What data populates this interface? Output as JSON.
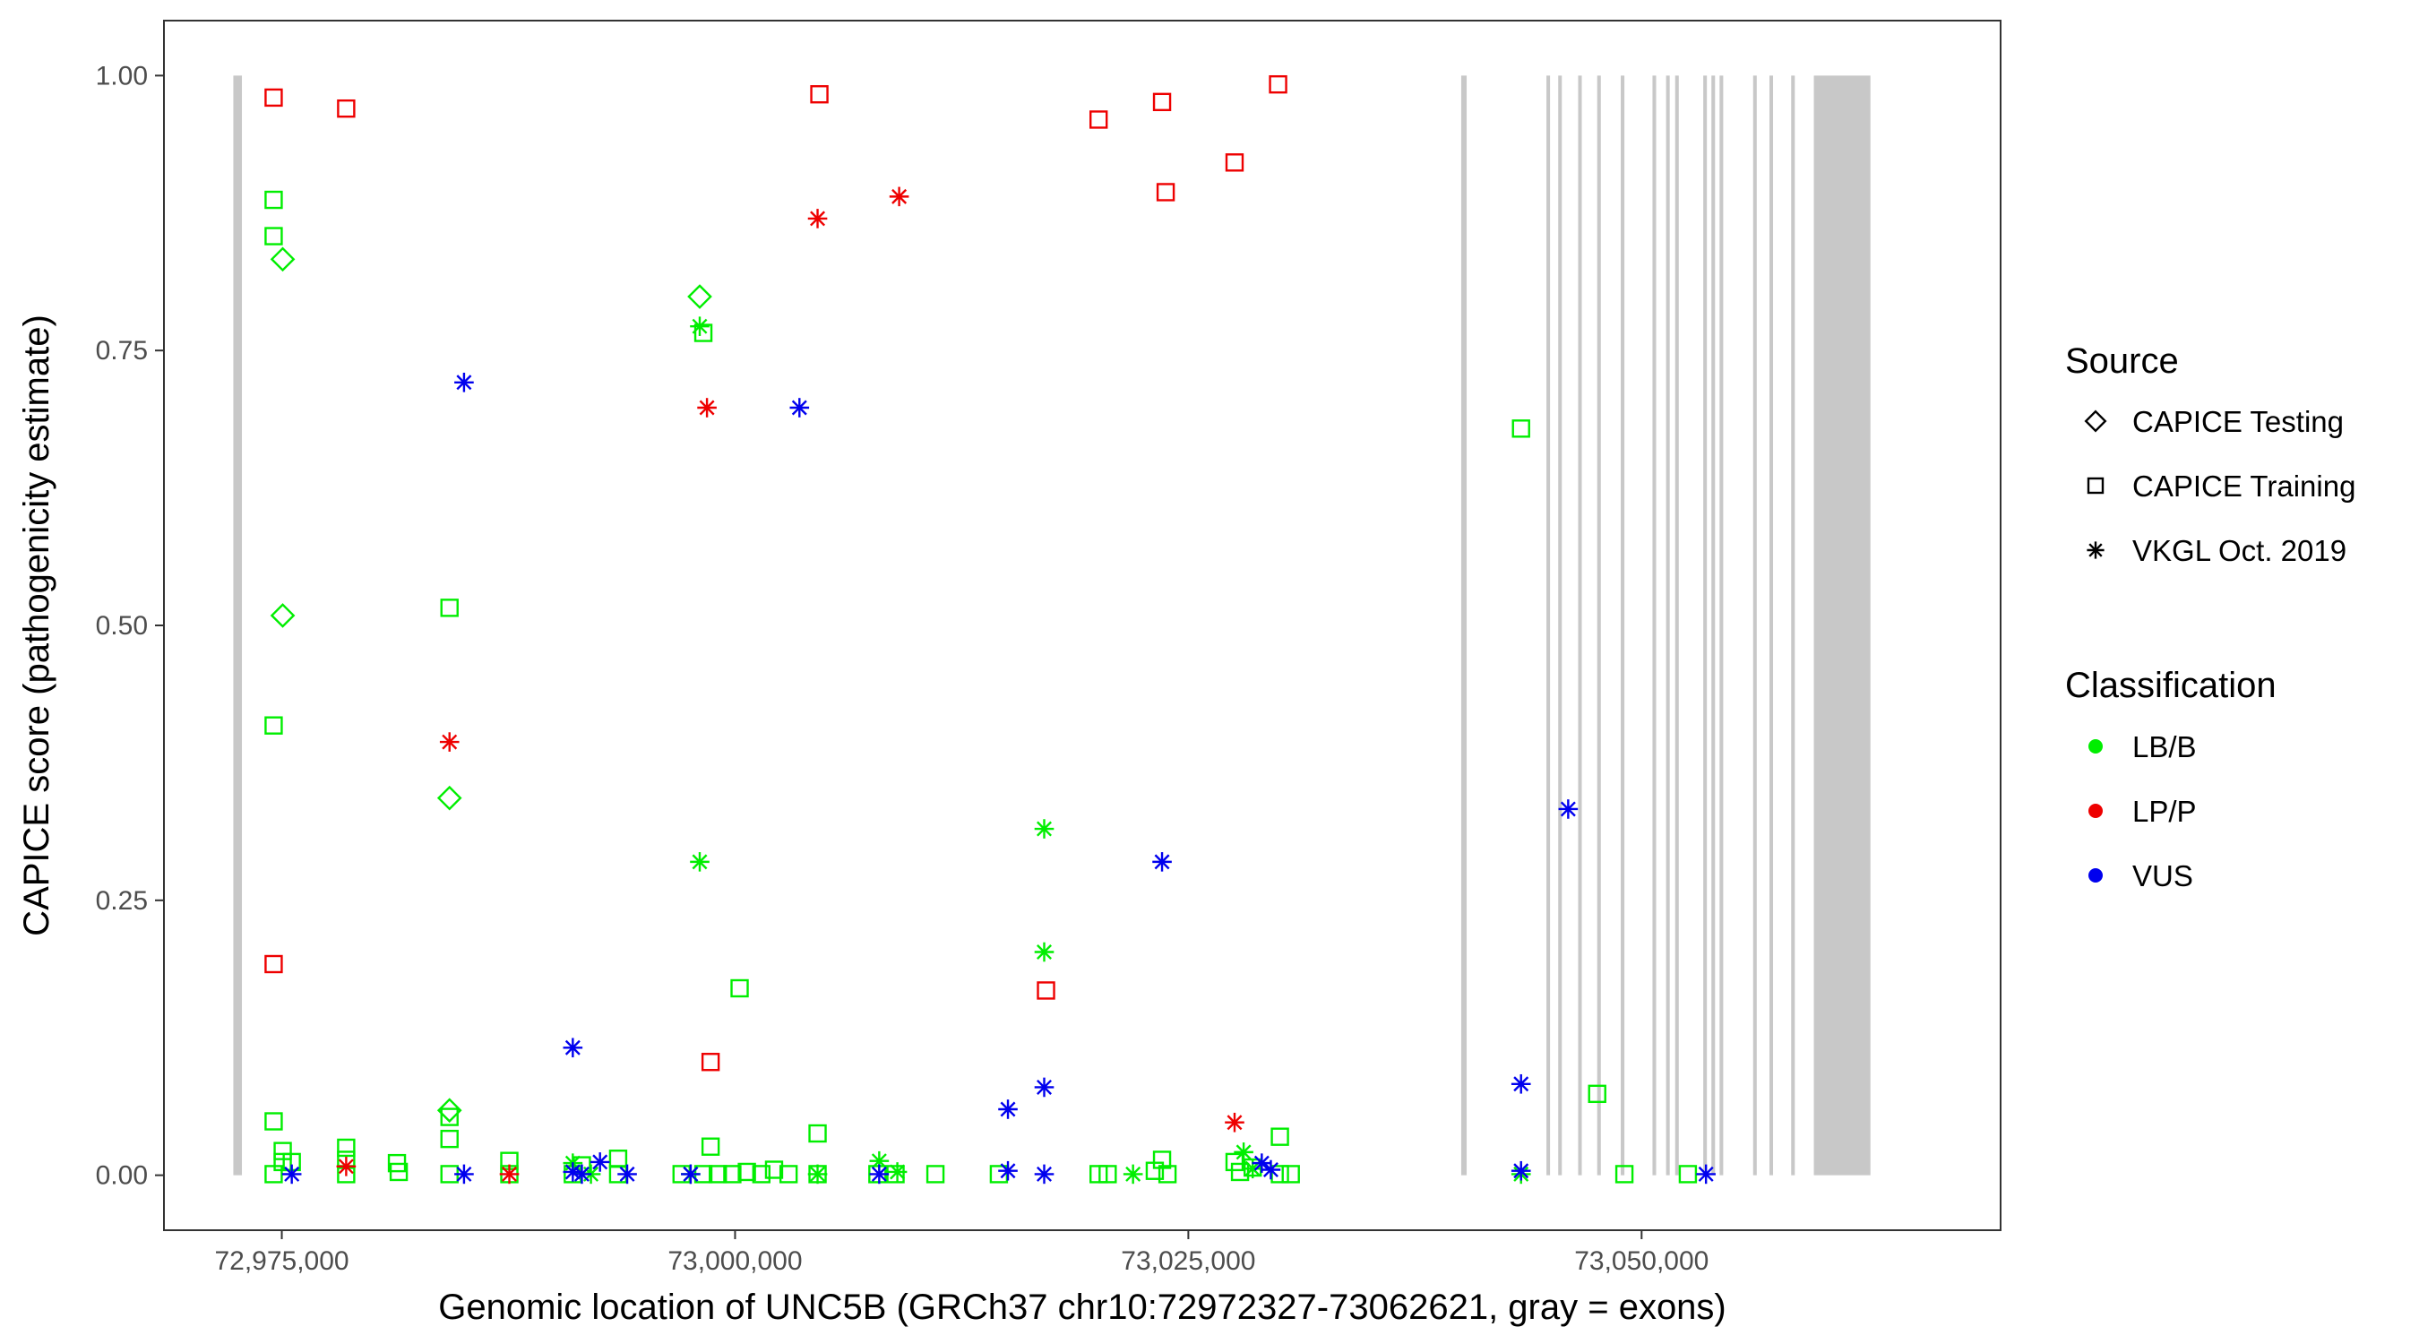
{
  "chart_data": {
    "type": "scatter",
    "xlabel": "Genomic location of UNC5B (GRCh37 chr10:72972327-73062621, gray = exons)",
    "ylabel": "CAPICE score (pathogenicity estimate)",
    "xlim": [
      72968500,
      73069800
    ],
    "ylim": [
      -0.05,
      1.05
    ],
    "x_ticks": [
      {
        "value": 72975000,
        "label": "72,975,000"
      },
      {
        "value": 73000000,
        "label": "73,000,000"
      },
      {
        "value": 73025000,
        "label": "73,025,000"
      },
      {
        "value": 73050000,
        "label": "73,050,000"
      }
    ],
    "y_ticks": [
      {
        "value": 0.0,
        "label": "0.00"
      },
      {
        "value": 0.25,
        "label": "0.25"
      },
      {
        "value": 0.5,
        "label": "0.50"
      },
      {
        "value": 0.75,
        "label": "0.75"
      },
      {
        "value": 1.0,
        "label": "1.00"
      }
    ],
    "grid": false,
    "exon_color": "#c8c8c8",
    "exons": [
      [
        72972327,
        72972800
      ],
      [
        73040050,
        73040350
      ],
      [
        73044750,
        73044950
      ],
      [
        73045400,
        73045600
      ],
      [
        73046500,
        73046700
      ],
      [
        73047550,
        73047750
      ],
      [
        73048850,
        73049050
      ],
      [
        73050600,
        73050800
      ],
      [
        73051350,
        73051550
      ],
      [
        73051850,
        73052050
      ],
      [
        73053400,
        73053600
      ],
      [
        73053850,
        73054050
      ],
      [
        73054300,
        73054500
      ],
      [
        73056150,
        73056350
      ],
      [
        73057050,
        73057250
      ],
      [
        73058250,
        73058450
      ],
      [
        73059500,
        73062621
      ]
    ],
    "legend": {
      "placement": "right",
      "source_title": "Source",
      "sources": [
        {
          "key": "testing",
          "label": "CAPICE Testing",
          "shape": "diamond"
        },
        {
          "key": "training",
          "label": "CAPICE Training",
          "shape": "square"
        },
        {
          "key": "vkgl",
          "label": "VKGL Oct. 2019",
          "shape": "asterisk"
        }
      ],
      "class_title": "Classification",
      "classes": [
        {
          "key": "LB/B",
          "label": "LB/B",
          "color": "#00ee00"
        },
        {
          "key": "LP/P",
          "label": "LP/P",
          "color": "#ee0000"
        },
        {
          "key": "VUS",
          "label": "VUS",
          "color": "#0000ee"
        }
      ]
    },
    "series": [
      {
        "source": "training",
        "classification": "LP/P",
        "points": [
          [
            72974550,
            0.98
          ],
          [
            72978550,
            0.97
          ],
          [
            73004650,
            0.983
          ],
          [
            73020050,
            0.96
          ],
          [
            73023550,
            0.976
          ],
          [
            73027550,
            0.921
          ],
          [
            73029950,
            0.992
          ],
          [
            73023750,
            0.894
          ],
          [
            72974550,
            0.192
          ],
          [
            72998650,
            0.103
          ],
          [
            73017150,
            0.168
          ]
        ]
      },
      {
        "source": "training",
        "classification": "LB/B",
        "points": [
          [
            72974550,
            0.887
          ],
          [
            72974550,
            0.854
          ],
          [
            72998250,
            0.766
          ],
          [
            72984250,
            0.516
          ],
          [
            72974550,
            0.409
          ],
          [
            73000250,
            0.17
          ],
          [
            72974550,
            0.049
          ],
          [
            72975050,
            0.022
          ],
          [
            72975050,
            0.012
          ],
          [
            72975550,
            0.012
          ],
          [
            72974550,
            0.001
          ],
          [
            72978550,
            0.025
          ],
          [
            72978550,
            0.014
          ],
          [
            72978550,
            0.001
          ],
          [
            72981350,
            0.011
          ],
          [
            72981450,
            0.003
          ],
          [
            72984250,
            0.053
          ],
          [
            72984250,
            0.033
          ],
          [
            72984250,
            0.001
          ],
          [
            72987550,
            0.013
          ],
          [
            72987550,
            0.001
          ],
          [
            72991050,
            0.001
          ],
          [
            72991550,
            0.009
          ],
          [
            72993550,
            0.015
          ],
          [
            72993550,
            0.001
          ],
          [
            72997050,
            0.001
          ],
          [
            72998650,
            0.026
          ],
          [
            72998250,
            0.001
          ],
          [
            72999050,
            0.001
          ],
          [
            72999850,
            0.001
          ],
          [
            73000650,
            0.003
          ],
          [
            73001450,
            0.001
          ],
          [
            73002150,
            0.005
          ],
          [
            73002950,
            0.001
          ],
          [
            73004550,
            0.038
          ],
          [
            73004550,
            0.001
          ],
          [
            73007850,
            0.001
          ],
          [
            73008850,
            0.001
          ],
          [
            73011050,
            0.001
          ],
          [
            73014550,
            0.001
          ],
          [
            73020050,
            0.001
          ],
          [
            73020550,
            0.001
          ],
          [
            73023150,
            0.004
          ],
          [
            73023550,
            0.014
          ],
          [
            73023850,
            0.001
          ],
          [
            73027550,
            0.012
          ],
          [
            73027850,
            0.003
          ],
          [
            73028550,
            0.007
          ],
          [
            73030050,
            0.035
          ],
          [
            73030050,
            0.001
          ],
          [
            73030650,
            0.001
          ],
          [
            73043350,
            0.679
          ],
          [
            73047550,
            0.074
          ],
          [
            73049050,
            0.001
          ],
          [
            73052550,
            0.001
          ]
        ]
      },
      {
        "source": "testing",
        "classification": "LB/B",
        "points": [
          [
            72975050,
            0.833
          ],
          [
            72998050,
            0.799
          ],
          [
            72975050,
            0.509
          ],
          [
            72984250,
            0.343
          ],
          [
            72984250,
            0.059
          ]
        ]
      },
      {
        "source": "vkgl",
        "classification": "LB/B",
        "points": [
          [
            72998050,
            0.772
          ],
          [
            72998050,
            0.285
          ],
          [
            73017050,
            0.315
          ],
          [
            73017050,
            0.203
          ],
          [
            72991050,
            0.011
          ],
          [
            72992050,
            0.001
          ],
          [
            72997550,
            0.001
          ],
          [
            73004550,
            0.001
          ],
          [
            73007950,
            0.013
          ],
          [
            73008950,
            0.003
          ],
          [
            73021950,
            0.001
          ],
          [
            73028050,
            0.021
          ],
          [
            73028550,
            0.006
          ],
          [
            73043350,
            0.001
          ]
        ]
      },
      {
        "source": "vkgl",
        "classification": "LP/P",
        "points": [
          [
            73004550,
            0.87
          ],
          [
            73009050,
            0.89
          ],
          [
            72998450,
            0.698
          ],
          [
            72984250,
            0.394
          ],
          [
            73027550,
            0.048
          ],
          [
            72978550,
            0.008
          ],
          [
            72987550,
            0.001
          ]
        ]
      },
      {
        "source": "vkgl",
        "classification": "VUS",
        "points": [
          [
            72985050,
            0.721
          ],
          [
            73003550,
            0.698
          ],
          [
            73023550,
            0.285
          ],
          [
            73045950,
            0.333
          ],
          [
            72991050,
            0.116
          ],
          [
            73017050,
            0.08
          ],
          [
            73015050,
            0.06
          ],
          [
            73043350,
            0.083
          ],
          [
            72975550,
            0.001
          ],
          [
            72985050,
            0.001
          ],
          [
            72991050,
            0.003
          ],
          [
            72991550,
            0.001
          ],
          [
            72992550,
            0.012
          ],
          [
            72994050,
            0.001
          ],
          [
            72997550,
            0.001
          ],
          [
            73007950,
            0.001
          ],
          [
            73015050,
            0.004
          ],
          [
            73017050,
            0.001
          ],
          [
            73029050,
            0.011
          ],
          [
            73029550,
            0.005
          ],
          [
            73043350,
            0.004
          ],
          [
            73053550,
            0.001
          ]
        ]
      }
    ]
  }
}
